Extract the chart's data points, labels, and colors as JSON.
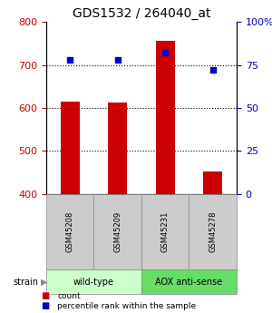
{
  "title": "GDS1532 / 264040_at",
  "samples": [
    "GSM45208",
    "GSM45209",
    "GSM45231",
    "GSM45278"
  ],
  "counts": [
    615,
    612,
    757,
    453
  ],
  "percentiles": [
    78,
    78,
    82,
    72
  ],
  "ylim_left": [
    400,
    800
  ],
  "ylim_right": [
    0,
    100
  ],
  "yticks_left": [
    400,
    500,
    600,
    700,
    800
  ],
  "yticks_right": [
    0,
    25,
    50,
    75,
    100
  ],
  "bar_color": "#cc0000",
  "dot_color": "#0000cc",
  "grid_color": "#000000",
  "groups": [
    {
      "label": "wild-type",
      "samples": [
        0,
        1
      ],
      "color": "#ccffcc"
    },
    {
      "label": "AOX anti-sense",
      "samples": [
        2,
        3
      ],
      "color": "#66dd66"
    }
  ],
  "strain_label": "strain",
  "legend_count_label": "count",
  "legend_pct_label": "percentile rank within the sample",
  "title_fontsize": 10,
  "axis_label_color_left": "#cc0000",
  "axis_label_color_right": "#0000cc",
  "bar_width": 0.4,
  "sample_box_color": "#cccccc"
}
